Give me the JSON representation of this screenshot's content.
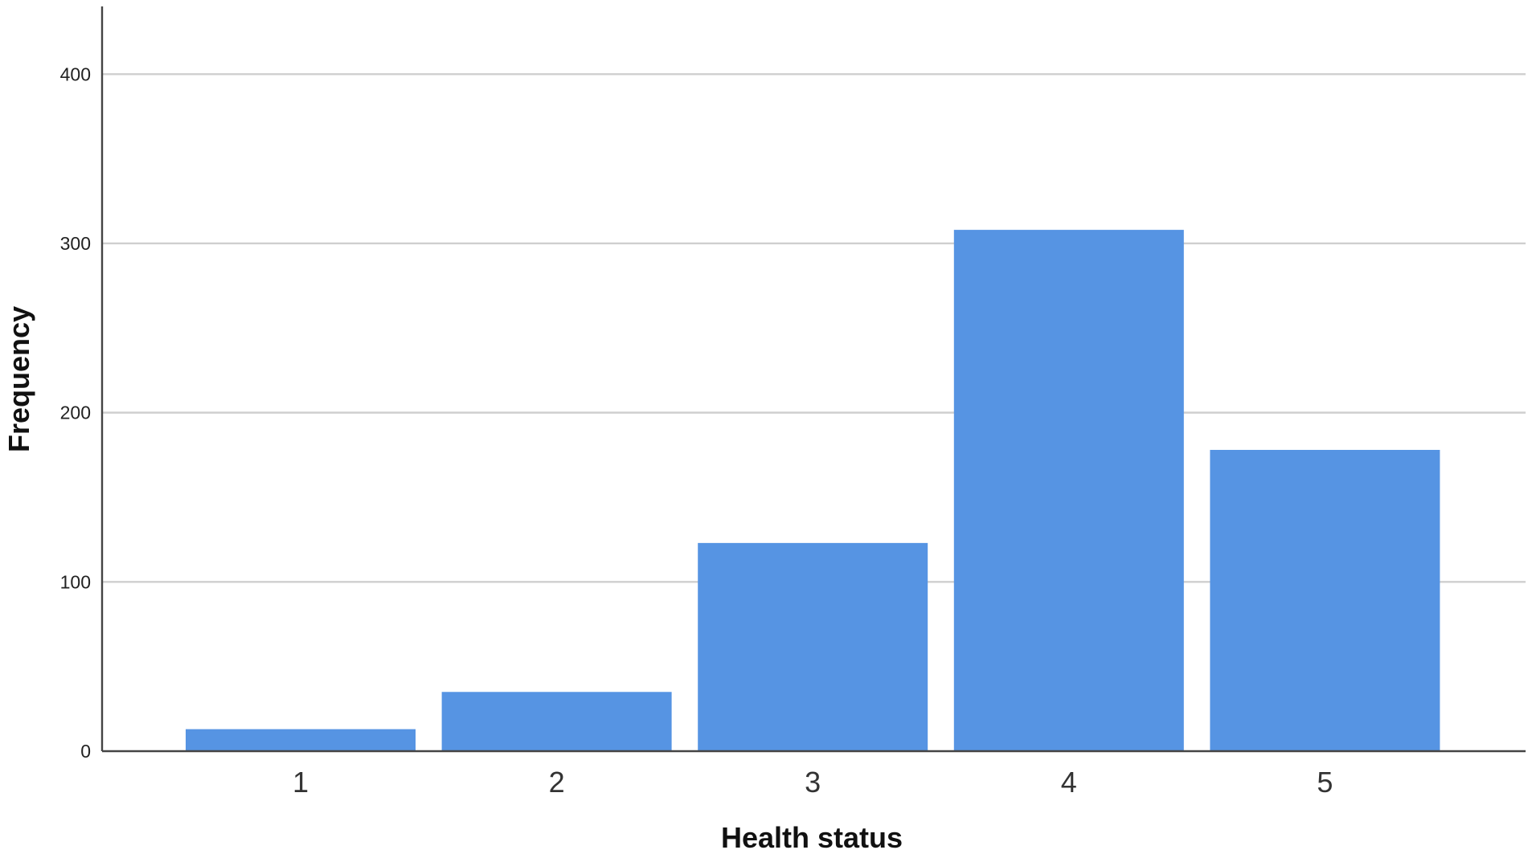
{
  "chart_data": {
    "type": "bar",
    "categories": [
      "1",
      "2",
      "3",
      "4",
      "5"
    ],
    "values": [
      13,
      35,
      123,
      308,
      178
    ],
    "xlabel": "Health status",
    "ylabel": "Frequency",
    "ylim": [
      0,
      440
    ],
    "yticks": [
      0,
      100,
      200,
      300,
      400
    ],
    "ytick_labels": [
      "0",
      "100",
      "200",
      "300",
      "400"
    ],
    "grid": true,
    "legend": "none",
    "colors": {
      "bar": "#5694e3",
      "grid": "#cfcfcf",
      "axis": "#444444"
    }
  }
}
